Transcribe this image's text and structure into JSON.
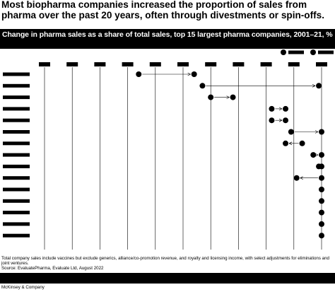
{
  "headline": "Most biopharma companies increased the proportion of sales from pharma over the past 20 years, often through divestments or spin-offs.",
  "chart_data": {
    "type": "dumbbell",
    "title": "Change in pharma sales as a share of total sales, top 15 largest pharma companies, 2001–21, %",
    "xlim": [
      0,
      100
    ],
    "grid": true,
    "ticks": [
      0,
      10,
      20,
      30,
      40,
      50,
      60,
      70,
      80,
      90,
      100
    ],
    "series": [],
    "rows": [
      {
        "start": 34,
        "end": 54
      },
      {
        "start": 57,
        "end": 99
      },
      {
        "start": 60,
        "end": 68
      },
      {
        "start": 82,
        "end": 87
      },
      {
        "start": 82,
        "end": 87
      },
      {
        "start": 89,
        "end": 100
      },
      {
        "start": 93,
        "end": 87
      },
      {
        "start": 97,
        "end": 100
      },
      {
        "start": 99,
        "end": 100
      },
      {
        "start": 100,
        "end": 91
      },
      {
        "start": 100,
        "end": 100
      },
      {
        "start": 100,
        "end": 100
      },
      {
        "start": 100,
        "end": 100
      },
      {
        "start": 100,
        "end": 100
      },
      {
        "start": 100,
        "end": 100
      }
    ]
  },
  "colors": {
    "ink": "#000000",
    "grid": "#000000",
    "background": "#ffffff"
  },
  "footnote": "Total company sales include vaccines but exclude generics, alliance/co-promotion revenue, and royalty and licensing income, with select adjustments for eliminations and joint ventures.",
  "source": "Source: EvaluatePharma, Evaluate Ltd, August 2022",
  "brand": "McKinsey & Company"
}
